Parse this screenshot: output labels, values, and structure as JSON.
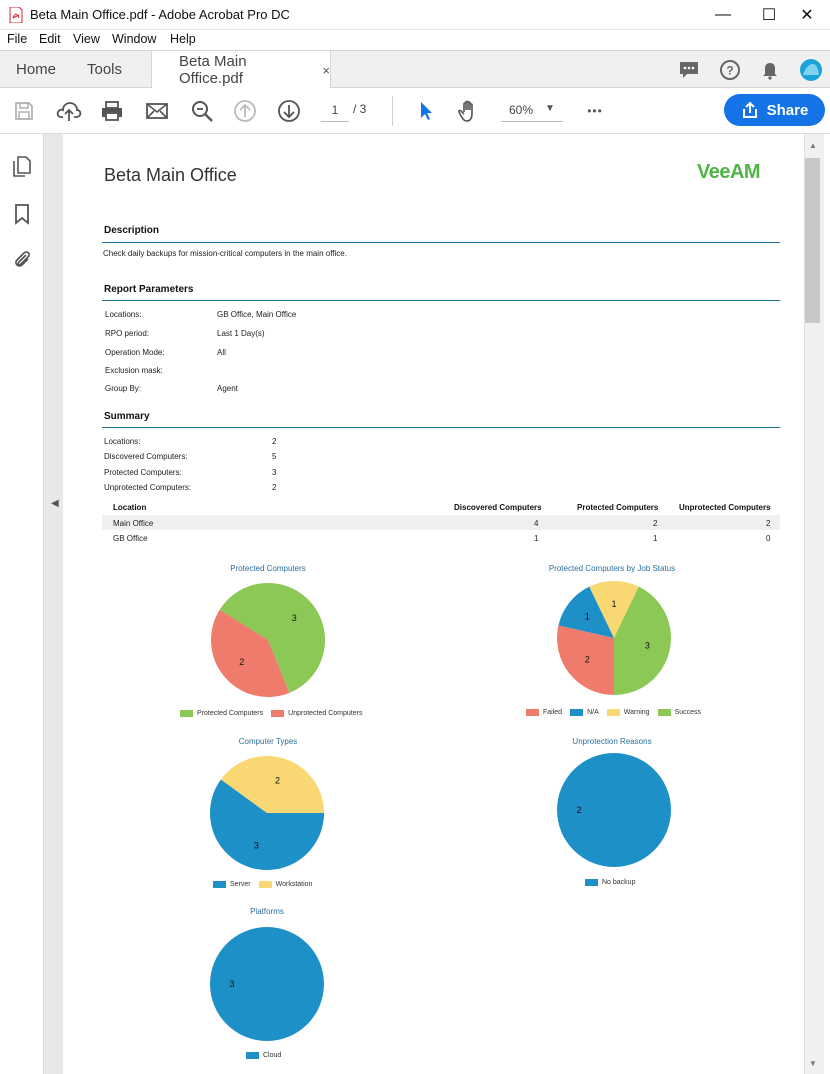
{
  "window": {
    "title": "Beta Main Office.pdf - Adobe Acrobat Pro DC",
    "minimize": "—",
    "maximize": "☐",
    "close": "✕"
  },
  "menu": [
    "File",
    "Edit",
    "View",
    "Window",
    "Help"
  ],
  "tabs": {
    "home": "Home",
    "tools": "Tools",
    "document": "Beta Main Office.pdf",
    "close": "×"
  },
  "toolbar": {
    "page_current": "1",
    "page_total": "/  3",
    "zoom": "60%",
    "more": "•••",
    "share_label": "Share"
  },
  "report": {
    "title": "Beta Main Office",
    "logo": "VeeAM",
    "description": {
      "header": "Description",
      "text": "Check daily backups for mission-critical computers in the main office."
    },
    "parameters": {
      "header": "Report Parameters",
      "rows": [
        {
          "label": "Locations:",
          "value": "GB Office, Main Office"
        },
        {
          "label": "RPO period:",
          "value": "Last 1 Day(s)"
        },
        {
          "label": "Operation Mode:",
          "value": "All"
        },
        {
          "label": "Exclusion mask:",
          "value": ""
        },
        {
          "label": "Group By:",
          "value": "Agent"
        }
      ]
    },
    "summary": {
      "header": "Summary",
      "rows": [
        {
          "label": "Locations:",
          "value": "2"
        },
        {
          "label": "Discovered Computers:",
          "value": "5"
        },
        {
          "label": "Protected Computers:",
          "value": "3"
        },
        {
          "label": "Unprotected Computers:",
          "value": "2"
        }
      ]
    },
    "table": {
      "columns": [
        "Location",
        "Discovered Computers",
        "Protected Computers",
        "Unprotected Computers"
      ],
      "rows": [
        [
          "Main Office",
          "4",
          "2",
          "2"
        ],
        [
          "GB Office",
          "1",
          "1",
          "0"
        ]
      ]
    }
  },
  "colors": {
    "green": "#8cc856",
    "red": "#ee7b6b",
    "blue": "#1e90c8",
    "yellow": "#f9d772",
    "accent": "#1473e6"
  },
  "chart_data": [
    {
      "type": "pie",
      "title": "Protected Computers",
      "categories": [
        "Protected Computers",
        "Unprotected Computers"
      ],
      "values": [
        3,
        2
      ],
      "colors": [
        "#8cc856",
        "#ee7b6b"
      ]
    },
    {
      "type": "pie",
      "title": "Protected Computers by Job Status",
      "categories": [
        "Failed",
        "N/A",
        "Warning",
        "Success"
      ],
      "values": [
        2,
        1,
        1,
        3
      ],
      "colors": [
        "#ee7b6b",
        "#1e90c8",
        "#f9d772",
        "#8cc856"
      ]
    },
    {
      "type": "pie",
      "title": "Computer Types",
      "categories": [
        "Server",
        "Workstation"
      ],
      "values": [
        3,
        2
      ],
      "colors": [
        "#1e90c8",
        "#f9d772"
      ]
    },
    {
      "type": "pie",
      "title": "Unprotection Reasons",
      "categories": [
        "No backup"
      ],
      "values": [
        2
      ],
      "colors": [
        "#1e90c8"
      ]
    },
    {
      "type": "pie",
      "title": "Platforms",
      "categories": [
        "Cloud"
      ],
      "values": [
        3
      ],
      "colors": [
        "#1e90c8"
      ]
    }
  ]
}
